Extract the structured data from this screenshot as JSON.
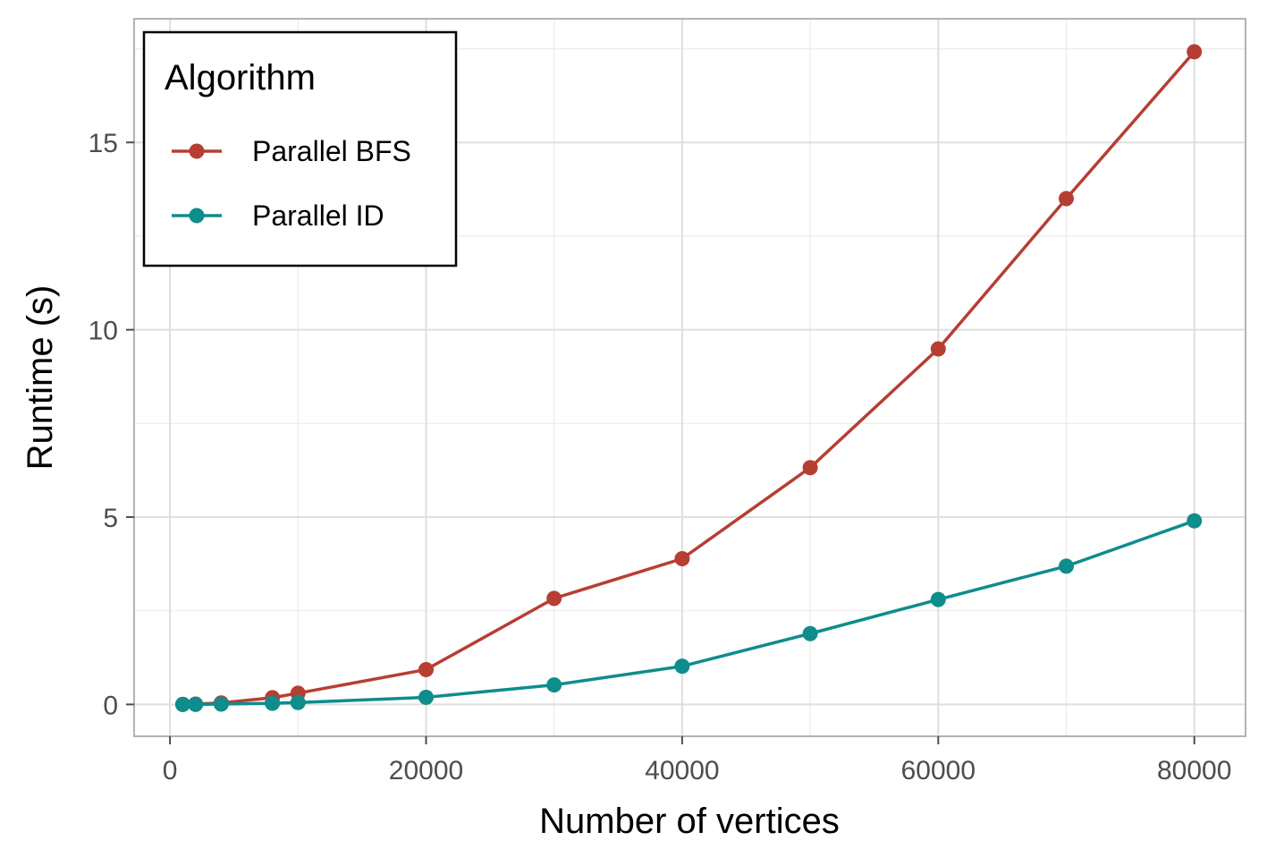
{
  "chart_data": {
    "type": "line",
    "xlabel": "Number of vertices",
    "ylabel": "Runtime (s)",
    "xlim": [
      -2800,
      84000
    ],
    "ylim": [
      -0.85,
      18.3
    ],
    "x_ticks": [
      0,
      20000,
      40000,
      60000,
      80000
    ],
    "x_tick_labels": [
      "0",
      "20000",
      "40000",
      "60000",
      "80000"
    ],
    "y_ticks": [
      0,
      5,
      10,
      15
    ],
    "y_tick_labels": [
      "0",
      "5",
      "10",
      "15"
    ],
    "x_minor_ticks": [
      10000,
      30000,
      50000,
      70000
    ],
    "y_minor_ticks": [
      2.5,
      7.5,
      12.5,
      17.5
    ],
    "grid": true,
    "legend": {
      "title": "Algorithm",
      "placement": "top-left"
    },
    "series": [
      {
        "name": "Parallel BFS",
        "color": "#b73e32",
        "points": [
          {
            "x": 1000,
            "y": 0.0
          },
          {
            "x": 2000,
            "y": 0.01
          },
          {
            "x": 4000,
            "y": 0.04
          },
          {
            "x": 8000,
            "y": 0.18
          },
          {
            "x": 10000,
            "y": 0.3
          },
          {
            "x": 20000,
            "y": 0.93
          },
          {
            "x": 30000,
            "y": 2.83
          },
          {
            "x": 40000,
            "y": 3.89
          },
          {
            "x": 50000,
            "y": 6.32
          },
          {
            "x": 60000,
            "y": 9.49
          },
          {
            "x": 70000,
            "y": 13.5
          },
          {
            "x": 80000,
            "y": 17.42
          }
        ]
      },
      {
        "name": "Parallel ID",
        "color": "#0f8c8c",
        "points": [
          {
            "x": 1000,
            "y": 0.0
          },
          {
            "x": 2000,
            "y": 0.0
          },
          {
            "x": 4000,
            "y": 0.01
          },
          {
            "x": 8000,
            "y": 0.03
          },
          {
            "x": 10000,
            "y": 0.05
          },
          {
            "x": 20000,
            "y": 0.19
          },
          {
            "x": 30000,
            "y": 0.52
          },
          {
            "x": 40000,
            "y": 1.02
          },
          {
            "x": 50000,
            "y": 1.89
          },
          {
            "x": 60000,
            "y": 2.8
          },
          {
            "x": 70000,
            "y": 3.69
          },
          {
            "x": 80000,
            "y": 4.9
          }
        ]
      }
    ]
  }
}
